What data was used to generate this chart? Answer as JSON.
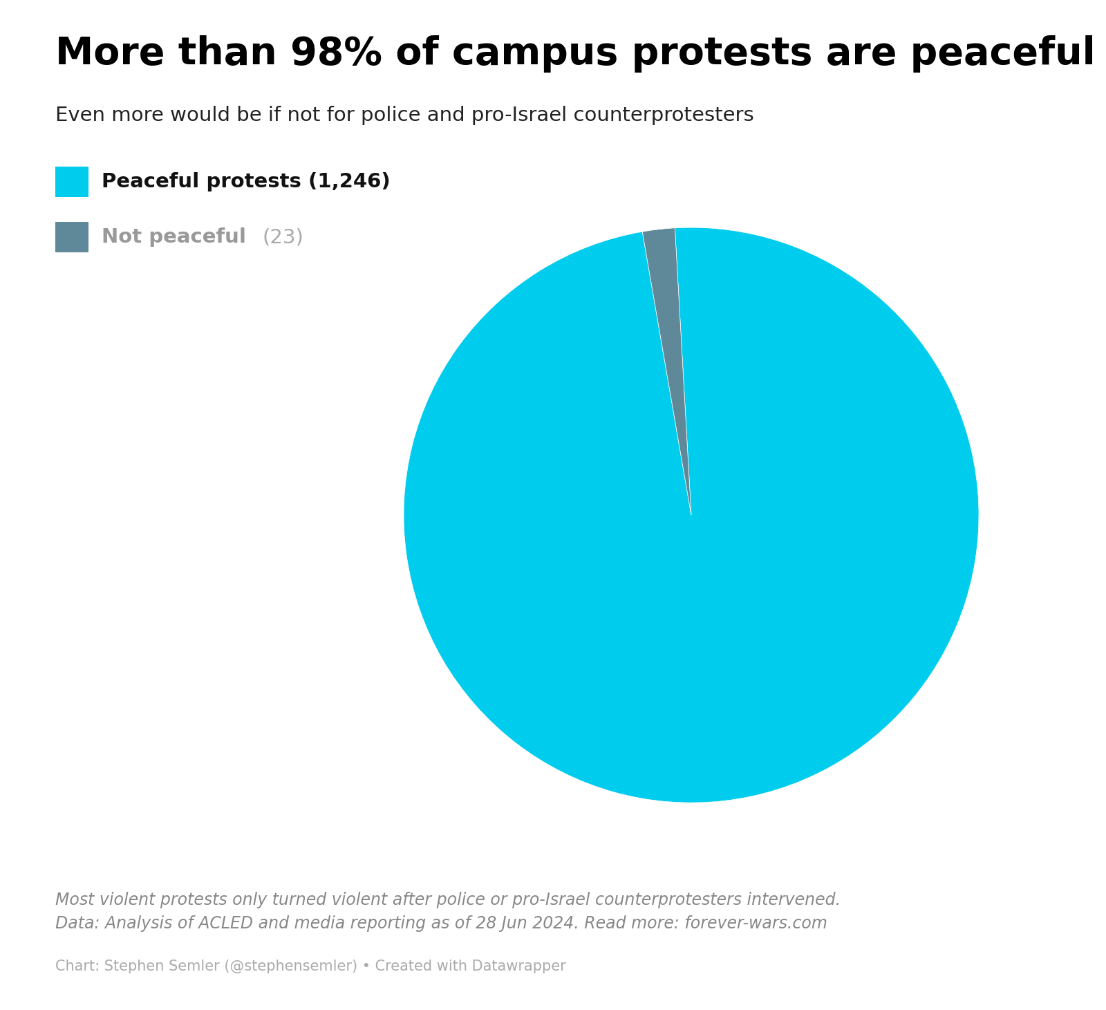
{
  "title": "More than 98% of campus protests are peaceful",
  "subtitle": "Even more would be if not for police and pro-Israel counterprotesters",
  "peaceful_count": 1246,
  "not_peaceful_count": 23,
  "peaceful_color": "#00CCEE",
  "not_peaceful_color": "#5f8898",
  "background_color": "#ffffff",
  "legend_label_peaceful": "Peaceful protests (1,246)",
  "legend_label_not_peaceful_bold": "Not peaceful ",
  "legend_label_not_peaceful_normal": "(23)",
  "footnote_line1": "Most violent protests only turned violent after police or pro-Israel counterprotesters intervened.",
  "footnote_line2": "Data: Analysis of ACLED and media reporting as of 28 Jun 2024. Read more: forever-wars.com",
  "credit": "Chart: Stephen Semler (@stephensemler) • Created with Datawrapper",
  "title_fontsize": 40,
  "subtitle_fontsize": 21,
  "legend_fontsize": 21,
  "footnote_fontsize": 17,
  "credit_fontsize": 15
}
